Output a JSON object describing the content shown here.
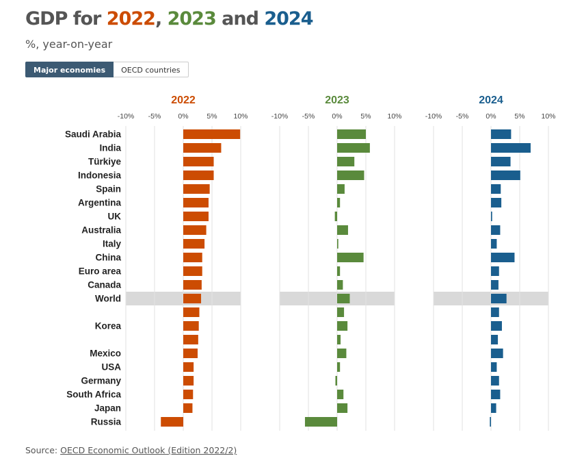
{
  "header": {
    "title_prefix": "GDP for ",
    "year1": "2022",
    "sep1": ", ",
    "year2": "2023",
    "sep2": " and ",
    "year3": "2024",
    "subtitle": "%, year-on-year"
  },
  "tabs": [
    {
      "label": "Major economies",
      "active": true
    },
    {
      "label": "OECD countries",
      "active": false
    }
  ],
  "source": {
    "prefix": "Source: ",
    "link_text": "OECD Economic Outlook (Edition 2022/2)"
  },
  "colors": {
    "c2022": "#cc4c02",
    "c2023": "#5a8a3c",
    "c2024": "#1a5e8e",
    "highlight": "#d9d9d9",
    "text": "#555555"
  },
  "chart_data": {
    "type": "bar",
    "orientation": "horizontal",
    "xlim": [
      -10,
      10
    ],
    "ticks": [
      -10,
      -5,
      0,
      5,
      10
    ],
    "tick_labels": [
      "-10%",
      "-5%",
      "0%",
      "5%",
      "10%"
    ],
    "highlight_category": "World",
    "categories": [
      "Saudi Arabia",
      "India",
      "Türkiye",
      "Indonesia",
      "Spain",
      "Argentina",
      "UK",
      "Australia",
      "Italy",
      "China",
      "Euro area",
      "Canada",
      "World",
      "",
      "Korea",
      "",
      "Mexico",
      "USA",
      "Germany",
      "South Africa",
      "Japan",
      "Russia"
    ],
    "series": [
      {
        "name": "2022",
        "values": [
          9.9,
          6.6,
          5.3,
          5.3,
          4.6,
          4.4,
          4.4,
          4.0,
          3.7,
          3.3,
          3.3,
          3.2,
          3.1,
          2.8,
          2.7,
          2.6,
          2.5,
          1.8,
          1.8,
          1.7,
          1.6,
          -3.9
        ]
      },
      {
        "name": "2023",
        "values": [
          5.0,
          5.7,
          3.0,
          4.7,
          1.3,
          0.5,
          -0.4,
          1.9,
          0.2,
          4.6,
          0.5,
          1.0,
          2.2,
          1.2,
          1.8,
          0.6,
          1.6,
          0.5,
          -0.3,
          1.1,
          1.8,
          -5.6
        ]
      },
      {
        "name": "2024",
        "values": [
          3.5,
          6.9,
          3.4,
          5.1,
          1.7,
          1.8,
          0.2,
          1.6,
          1.0,
          4.1,
          1.4,
          1.3,
          2.7,
          1.4,
          1.9,
          1.2,
          2.1,
          1.0,
          1.4,
          1.6,
          0.9,
          -0.2
        ]
      }
    ]
  }
}
